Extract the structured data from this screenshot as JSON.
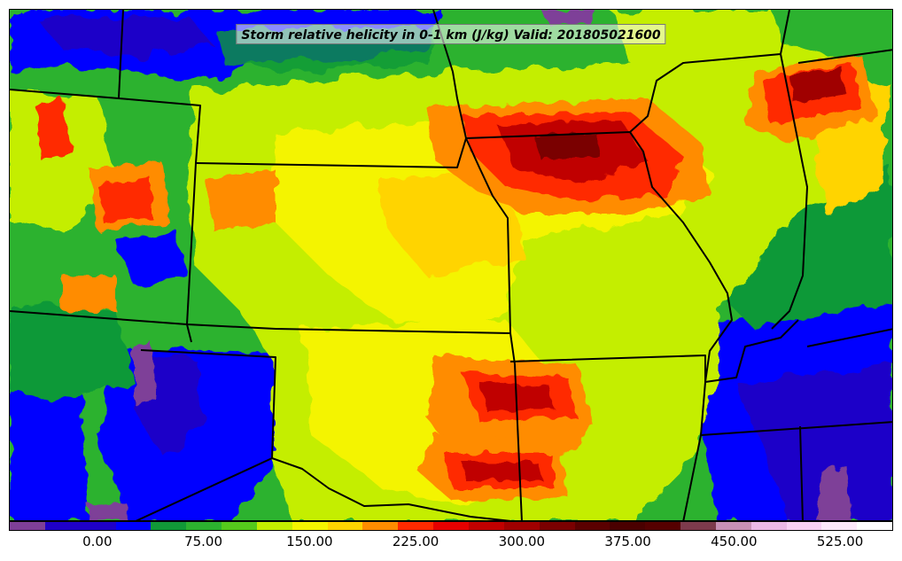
{
  "title": "Storm relative helicity in 0-1 km (J/kg) Valid: 201805021600",
  "colorbar": {
    "min": -50,
    "step": 25,
    "colors": [
      "#7e3f98",
      "#1f00c8",
      "#1f00c8",
      "#0000ff",
      "#119938",
      "#2cb22f",
      "#55c91c",
      "#c4ee00",
      "#f4f400",
      "#ffd400",
      "#ff8c00",
      "#ff2a00",
      "#e60000",
      "#c00000",
      "#a00000",
      "#7a0000",
      "#5a0000",
      "#4a0000",
      "#550000",
      "#7d3a4c",
      "#c890b6",
      "#ebb8e6",
      "#f8d0f4",
      "#fde8fb",
      "#ffffff"
    ],
    "tick_labels": [
      "0.00",
      "75.00",
      "150.00",
      "225.00",
      "300.00",
      "375.00",
      "450.00",
      "525.00"
    ],
    "tick_values": [
      0,
      75,
      150,
      225,
      300,
      375,
      450,
      525
    ]
  },
  "map_regions": {
    "base_color": "#2cb22f"
  }
}
